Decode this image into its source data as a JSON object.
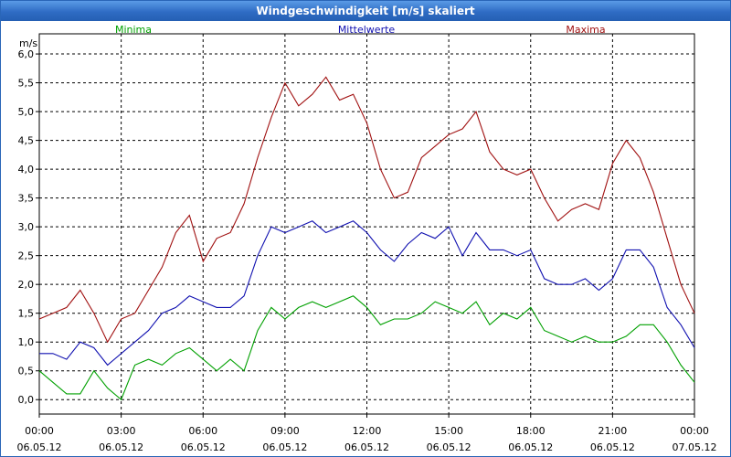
{
  "window": {
    "title": "Windgeschwindigkeit [m/s] skaliert"
  },
  "chart_data": {
    "type": "line",
    "title": "Windgeschwindigkeit [m/s] skaliert",
    "ylabel": "m/s",
    "xlabel": "",
    "ylim": [
      -0.25,
      6.35
    ],
    "xlim": [
      0,
      24
    ],
    "yticks": [
      {
        "value": 0,
        "label": "0,0"
      },
      {
        "value": 0.5,
        "label": "0,5"
      },
      {
        "value": 1,
        "label": "1,0"
      },
      {
        "value": 1.5,
        "label": "1,5"
      },
      {
        "value": 2,
        "label": "2,0"
      },
      {
        "value": 2.5,
        "label": "2,5"
      },
      {
        "value": 3,
        "label": "3,0"
      },
      {
        "value": 3.5,
        "label": "3,5"
      },
      {
        "value": 4,
        "label": "4,0"
      },
      {
        "value": 4.5,
        "label": "4,5"
      },
      {
        "value": 5,
        "label": "5,0"
      },
      {
        "value": 5.5,
        "label": "5,5"
      },
      {
        "value": 6,
        "label": "6,0"
      }
    ],
    "xticks": [
      {
        "value": 0,
        "time": "00:00",
        "date": "06.05.12"
      },
      {
        "value": 3,
        "time": "03:00",
        "date": "06.05.12"
      },
      {
        "value": 6,
        "time": "06:00",
        "date": "06.05.12"
      },
      {
        "value": 9,
        "time": "09:00",
        "date": "06.05.12"
      },
      {
        "value": 12,
        "time": "12:00",
        "date": "06.05.12"
      },
      {
        "value": 15,
        "time": "15:00",
        "date": "06.05.12"
      },
      {
        "value": 18,
        "time": "18:00",
        "date": "06.05.12"
      },
      {
        "value": 21,
        "time": "21:00",
        "date": "06.05.12"
      },
      {
        "value": 24,
        "time": "00:00",
        "date": "07.05.12"
      }
    ],
    "grid": true,
    "legend_placement": "top",
    "series": [
      {
        "name": "Minima",
        "color": "#00a000",
        "x": [
          0,
          0.5,
          1,
          1.5,
          2,
          2.5,
          3,
          3.5,
          4,
          4.5,
          5,
          5.5,
          6,
          6.5,
          7,
          7.5,
          8,
          8.5,
          9,
          9.5,
          10,
          10.5,
          11,
          11.5,
          12,
          12.5,
          13,
          13.5,
          14,
          14.5,
          15,
          15.5,
          16,
          16.5,
          17,
          17.5,
          18,
          18.5,
          19,
          19.5,
          20,
          20.5,
          21,
          21.5,
          22,
          22.5,
          23,
          23.5,
          24
        ],
        "values": [
          0.5,
          0.3,
          0.1,
          0.1,
          0.5,
          0.2,
          0.0,
          0.6,
          0.7,
          0.6,
          0.8,
          0.9,
          0.7,
          0.5,
          0.7,
          0.5,
          1.2,
          1.6,
          1.4,
          1.6,
          1.7,
          1.6,
          1.7,
          1.8,
          1.6,
          1.3,
          1.4,
          1.4,
          1.5,
          1.7,
          1.6,
          1.5,
          1.7,
          1.3,
          1.5,
          1.4,
          1.6,
          1.2,
          1.1,
          1.0,
          1.1,
          1.0,
          1.0,
          1.1,
          1.3,
          1.3,
          1.0,
          0.6,
          0.3
        ]
      },
      {
        "name": "Mittelwerte",
        "color": "#1010b0",
        "x": [
          0,
          0.5,
          1,
          1.5,
          2,
          2.5,
          3,
          3.5,
          4,
          4.5,
          5,
          5.5,
          6,
          6.5,
          7,
          7.5,
          8,
          8.5,
          9,
          9.5,
          10,
          10.5,
          11,
          11.5,
          12,
          12.5,
          13,
          13.5,
          14,
          14.5,
          15,
          15.5,
          16,
          16.5,
          17,
          17.5,
          18,
          18.5,
          19,
          19.5,
          20,
          20.5,
          21,
          21.5,
          22,
          22.5,
          23,
          23.5,
          24
        ],
        "values": [
          0.8,
          0.8,
          0.7,
          1.0,
          0.9,
          0.6,
          0.8,
          1.0,
          1.2,
          1.5,
          1.6,
          1.8,
          1.7,
          1.6,
          1.6,
          1.8,
          2.5,
          3.0,
          2.9,
          3.0,
          3.1,
          2.9,
          3.0,
          3.1,
          2.9,
          2.6,
          2.4,
          2.7,
          2.9,
          2.8,
          3.0,
          2.5,
          2.9,
          2.6,
          2.6,
          2.5,
          2.6,
          2.1,
          2.0,
          2.0,
          2.1,
          1.9,
          2.1,
          2.6,
          2.6,
          2.3,
          1.6,
          1.3,
          0.9
        ]
      },
      {
        "name": "Maxima",
        "color": "#a01010",
        "x": [
          0,
          0.5,
          1,
          1.5,
          2,
          2.5,
          3,
          3.5,
          4,
          4.5,
          5,
          5.5,
          6,
          6.5,
          7,
          7.5,
          8,
          8.5,
          9,
          9.5,
          10,
          10.5,
          11,
          11.5,
          12,
          12.5,
          13,
          13.5,
          14,
          14.5,
          15,
          15.5,
          16,
          16.5,
          17,
          17.5,
          18,
          18.5,
          19,
          19.5,
          20,
          20.5,
          21,
          21.5,
          22,
          22.5,
          23,
          23.5,
          24
        ],
        "values": [
          1.4,
          1.5,
          1.6,
          1.9,
          1.5,
          1.0,
          1.4,
          1.5,
          1.9,
          2.3,
          2.9,
          3.2,
          2.4,
          2.8,
          2.9,
          3.4,
          4.2,
          4.9,
          5.5,
          5.1,
          5.3,
          5.6,
          5.2,
          5.3,
          4.8,
          4.0,
          3.5,
          3.6,
          4.2,
          4.4,
          4.6,
          4.7,
          5.0,
          4.3,
          4.0,
          3.9,
          4.0,
          3.5,
          3.1,
          3.3,
          3.4,
          3.3,
          4.1,
          4.5,
          4.2,
          3.6,
          2.8,
          2.0,
          1.5
        ]
      }
    ]
  }
}
